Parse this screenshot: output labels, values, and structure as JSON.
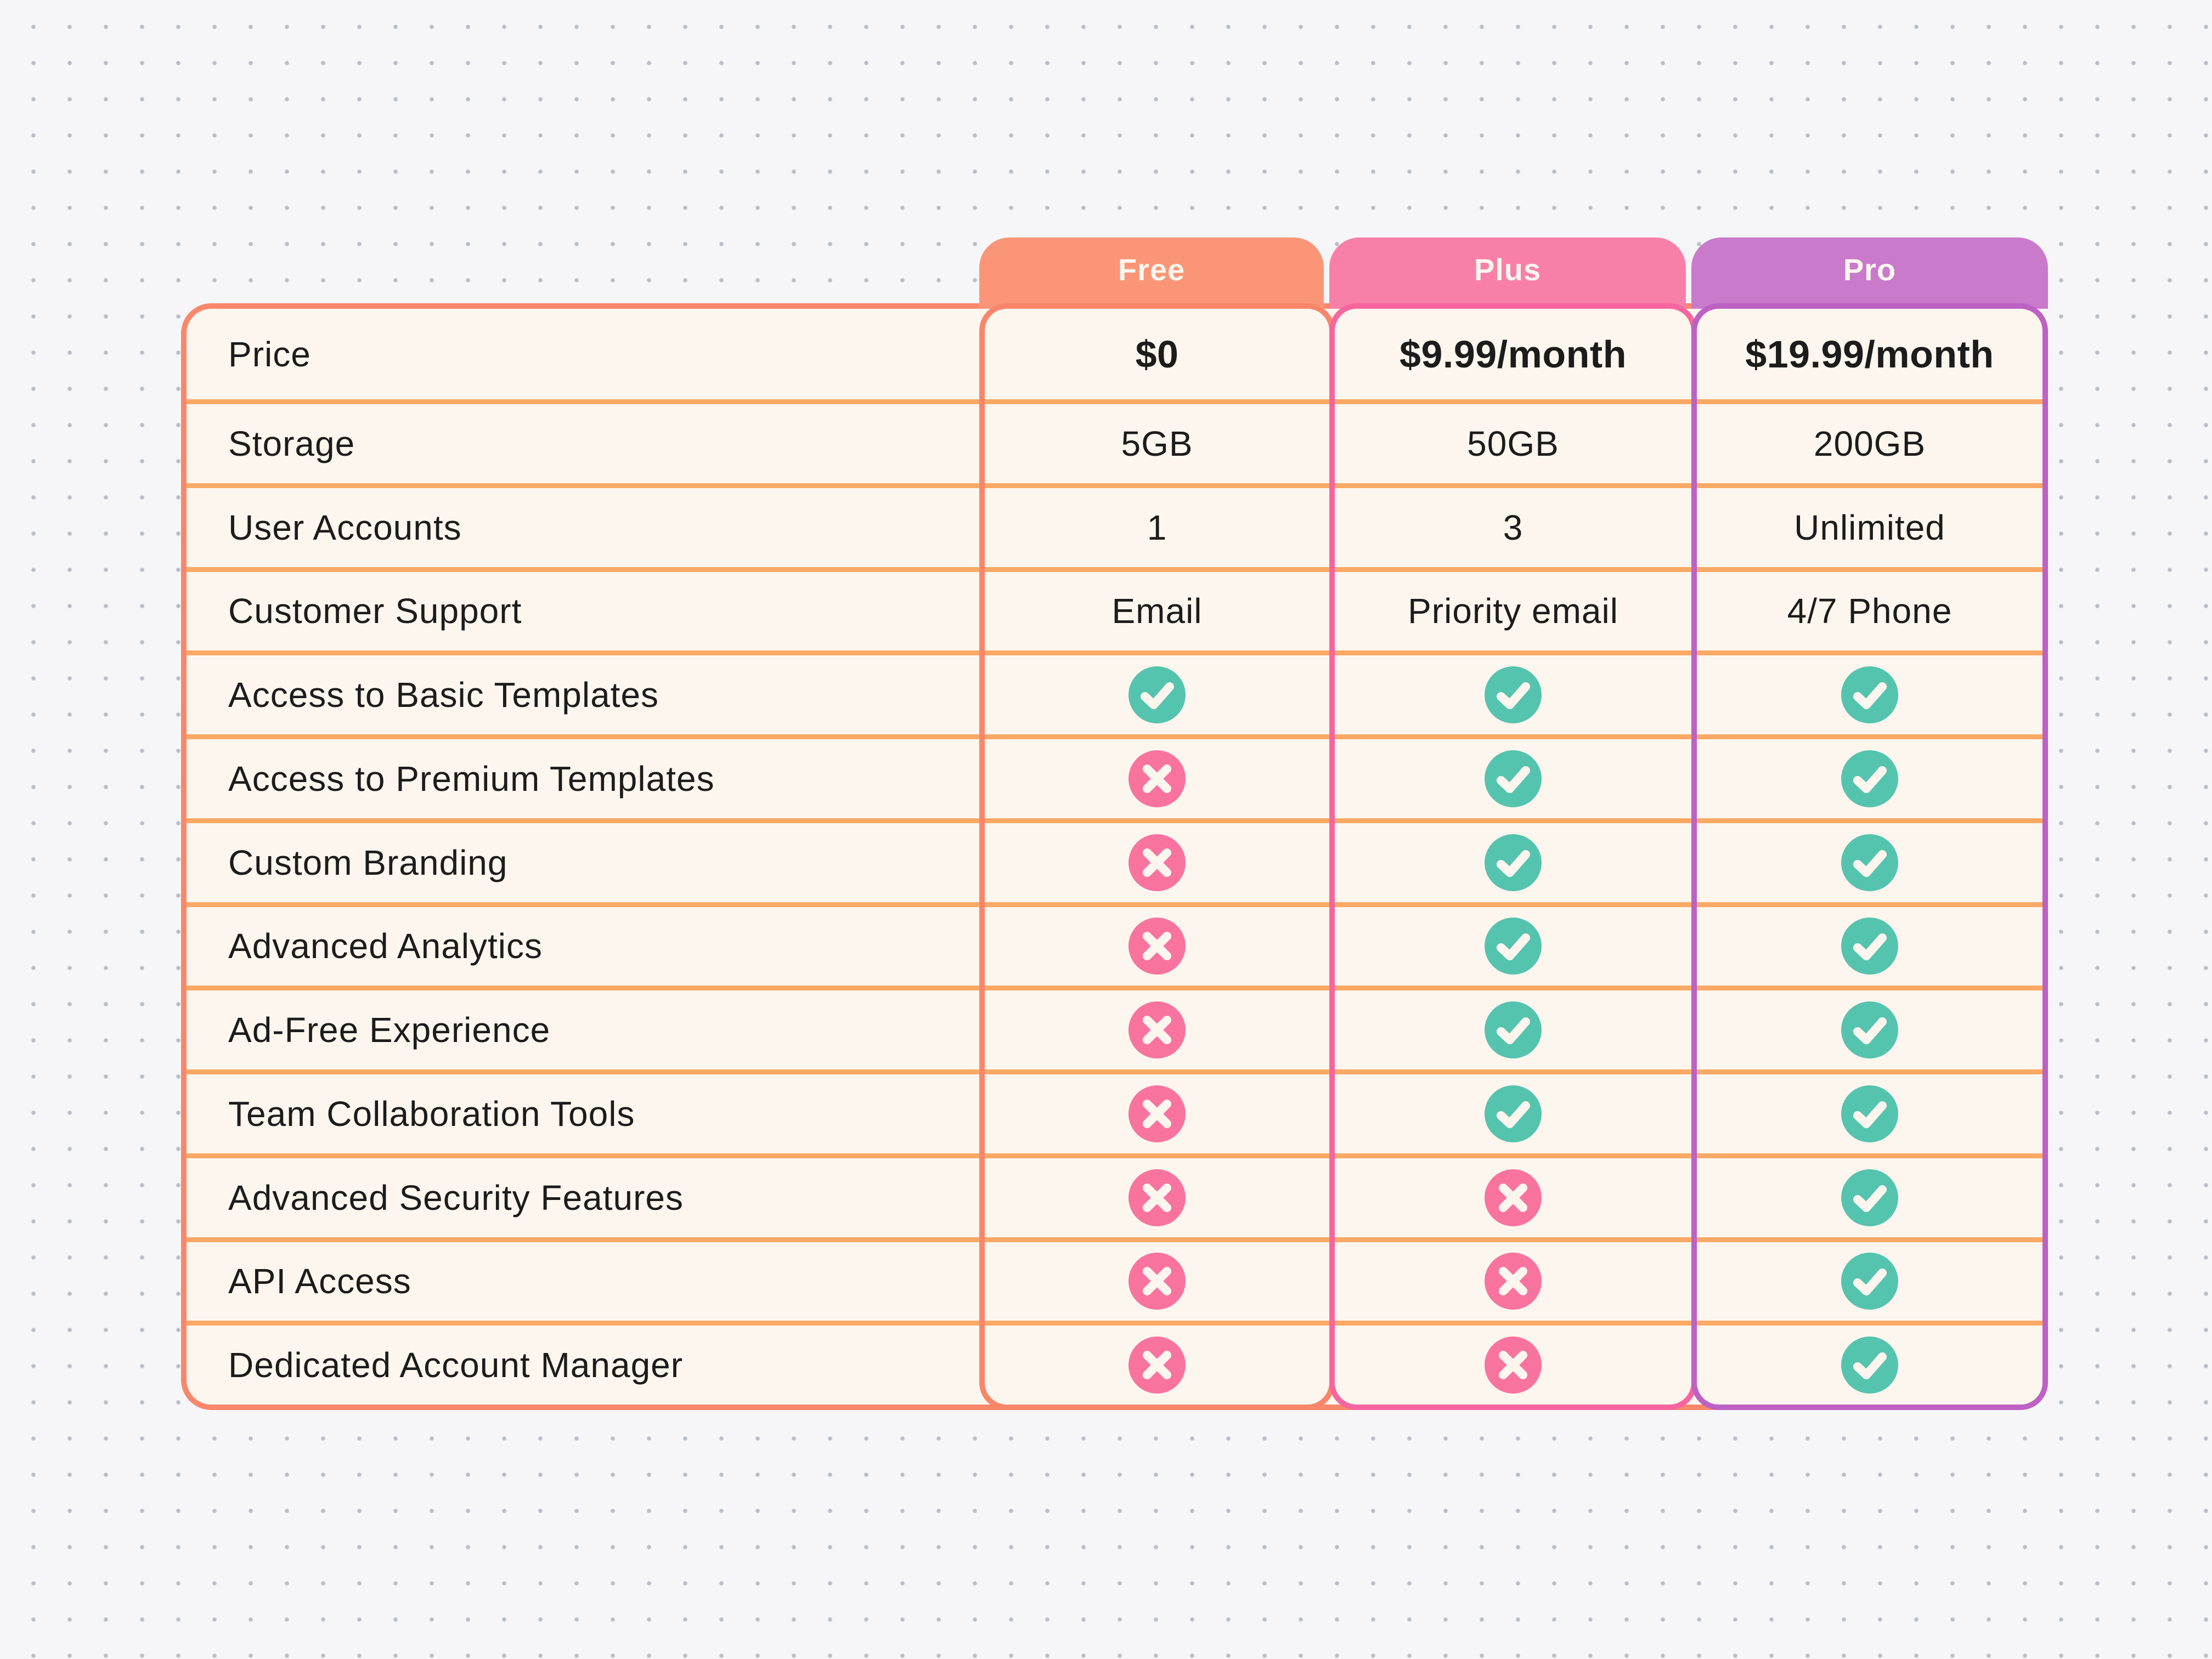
{
  "chart_data": {
    "type": "table",
    "columns": [
      "Free",
      "Plus",
      "Pro"
    ],
    "rows": [
      {
        "label": "Price",
        "values": [
          "$0",
          "$9.99/month",
          "$19.99/month"
        ]
      },
      {
        "label": "Storage",
        "values": [
          "5GB",
          "50GB",
          "200GB"
        ]
      },
      {
        "label": "User Accounts",
        "values": [
          "1",
          "3",
          "Unlimited"
        ]
      },
      {
        "label": "Customer Support",
        "values": [
          "Email",
          "Priority email",
          "4/7 Phone"
        ]
      },
      {
        "label": "Access to Basic Templates",
        "values": [
          "check",
          "check",
          "check"
        ]
      },
      {
        "label": "Access to Premium Templates",
        "values": [
          "x",
          "check",
          "check"
        ]
      },
      {
        "label": "Custom Branding",
        "values": [
          "x",
          "check",
          "check"
        ]
      },
      {
        "label": "Advanced Analytics",
        "values": [
          "x",
          "check",
          "check"
        ]
      },
      {
        "label": "Ad-Free Experience",
        "values": [
          "x",
          "check",
          "check"
        ]
      },
      {
        "label": "Team Collaboration Tools",
        "values": [
          "x",
          "check",
          "check"
        ]
      },
      {
        "label": "Advanced Security Features",
        "values": [
          "x",
          "x",
          "check"
        ]
      },
      {
        "label": "API Access",
        "values": [
          "x",
          "x",
          "check"
        ]
      },
      {
        "label": "Dedicated Account Manager",
        "values": [
          "x",
          "x",
          "check"
        ]
      }
    ]
  },
  "plans": [
    {
      "name": "Free",
      "header_bg": "#FA9577",
      "accent_border": "#F9866B"
    },
    {
      "name": "Plus",
      "header_bg": "#F880A8",
      "accent_border": "#F7659F"
    },
    {
      "name": "Pro",
      "header_bg": "#C97ACB",
      "accent_border": "#BD61C4"
    }
  ],
  "icons": {
    "check": "check-icon",
    "x": "x-icon"
  },
  "colors": {
    "page_bg": "#F6F6F8",
    "dot": "#B9BEC6",
    "table_bg": "#FDF6EE",
    "table_border": "#F9876B",
    "row_divider": "#F9A965",
    "check_bg": "#55C4AE",
    "cross_bg": "#F9739F",
    "icon_glyph": "#FDF6EE",
    "text_color": "#1C1C1C",
    "header_text": "#FDF6EE"
  }
}
